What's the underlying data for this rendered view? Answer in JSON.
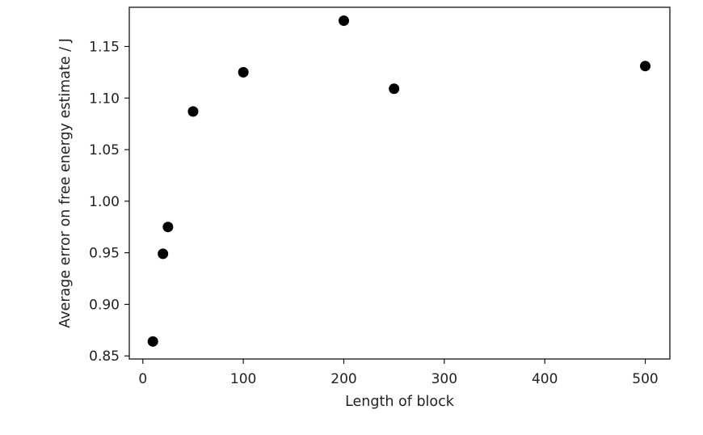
{
  "chart_data": {
    "type": "scatter",
    "title": "",
    "xlabel": "Length of block",
    "ylabel": "Average error on free energy estimate / J",
    "xlim": [
      -13.5,
      524.5
    ],
    "ylim": [
      0.847,
      1.188
    ],
    "xticks": [
      0,
      100,
      200,
      300,
      400,
      500
    ],
    "xtick_labels": [
      "0",
      "100",
      "200",
      "300",
      "400",
      "500"
    ],
    "yticks": [
      0.85,
      0.9,
      0.95,
      1.0,
      1.05,
      1.1,
      1.15
    ],
    "ytick_labels": [
      "0.85",
      "0.90",
      "0.95",
      "1.00",
      "1.05",
      "1.10",
      "1.15"
    ],
    "grid": false,
    "series": [
      {
        "marker": "circle",
        "color": "#000000",
        "x": [
          10,
          20,
          25,
          50,
          100,
          200,
          250,
          500
        ],
        "y": [
          0.864,
          0.949,
          0.975,
          1.087,
          1.125,
          1.175,
          1.109,
          1.131
        ]
      }
    ]
  }
}
